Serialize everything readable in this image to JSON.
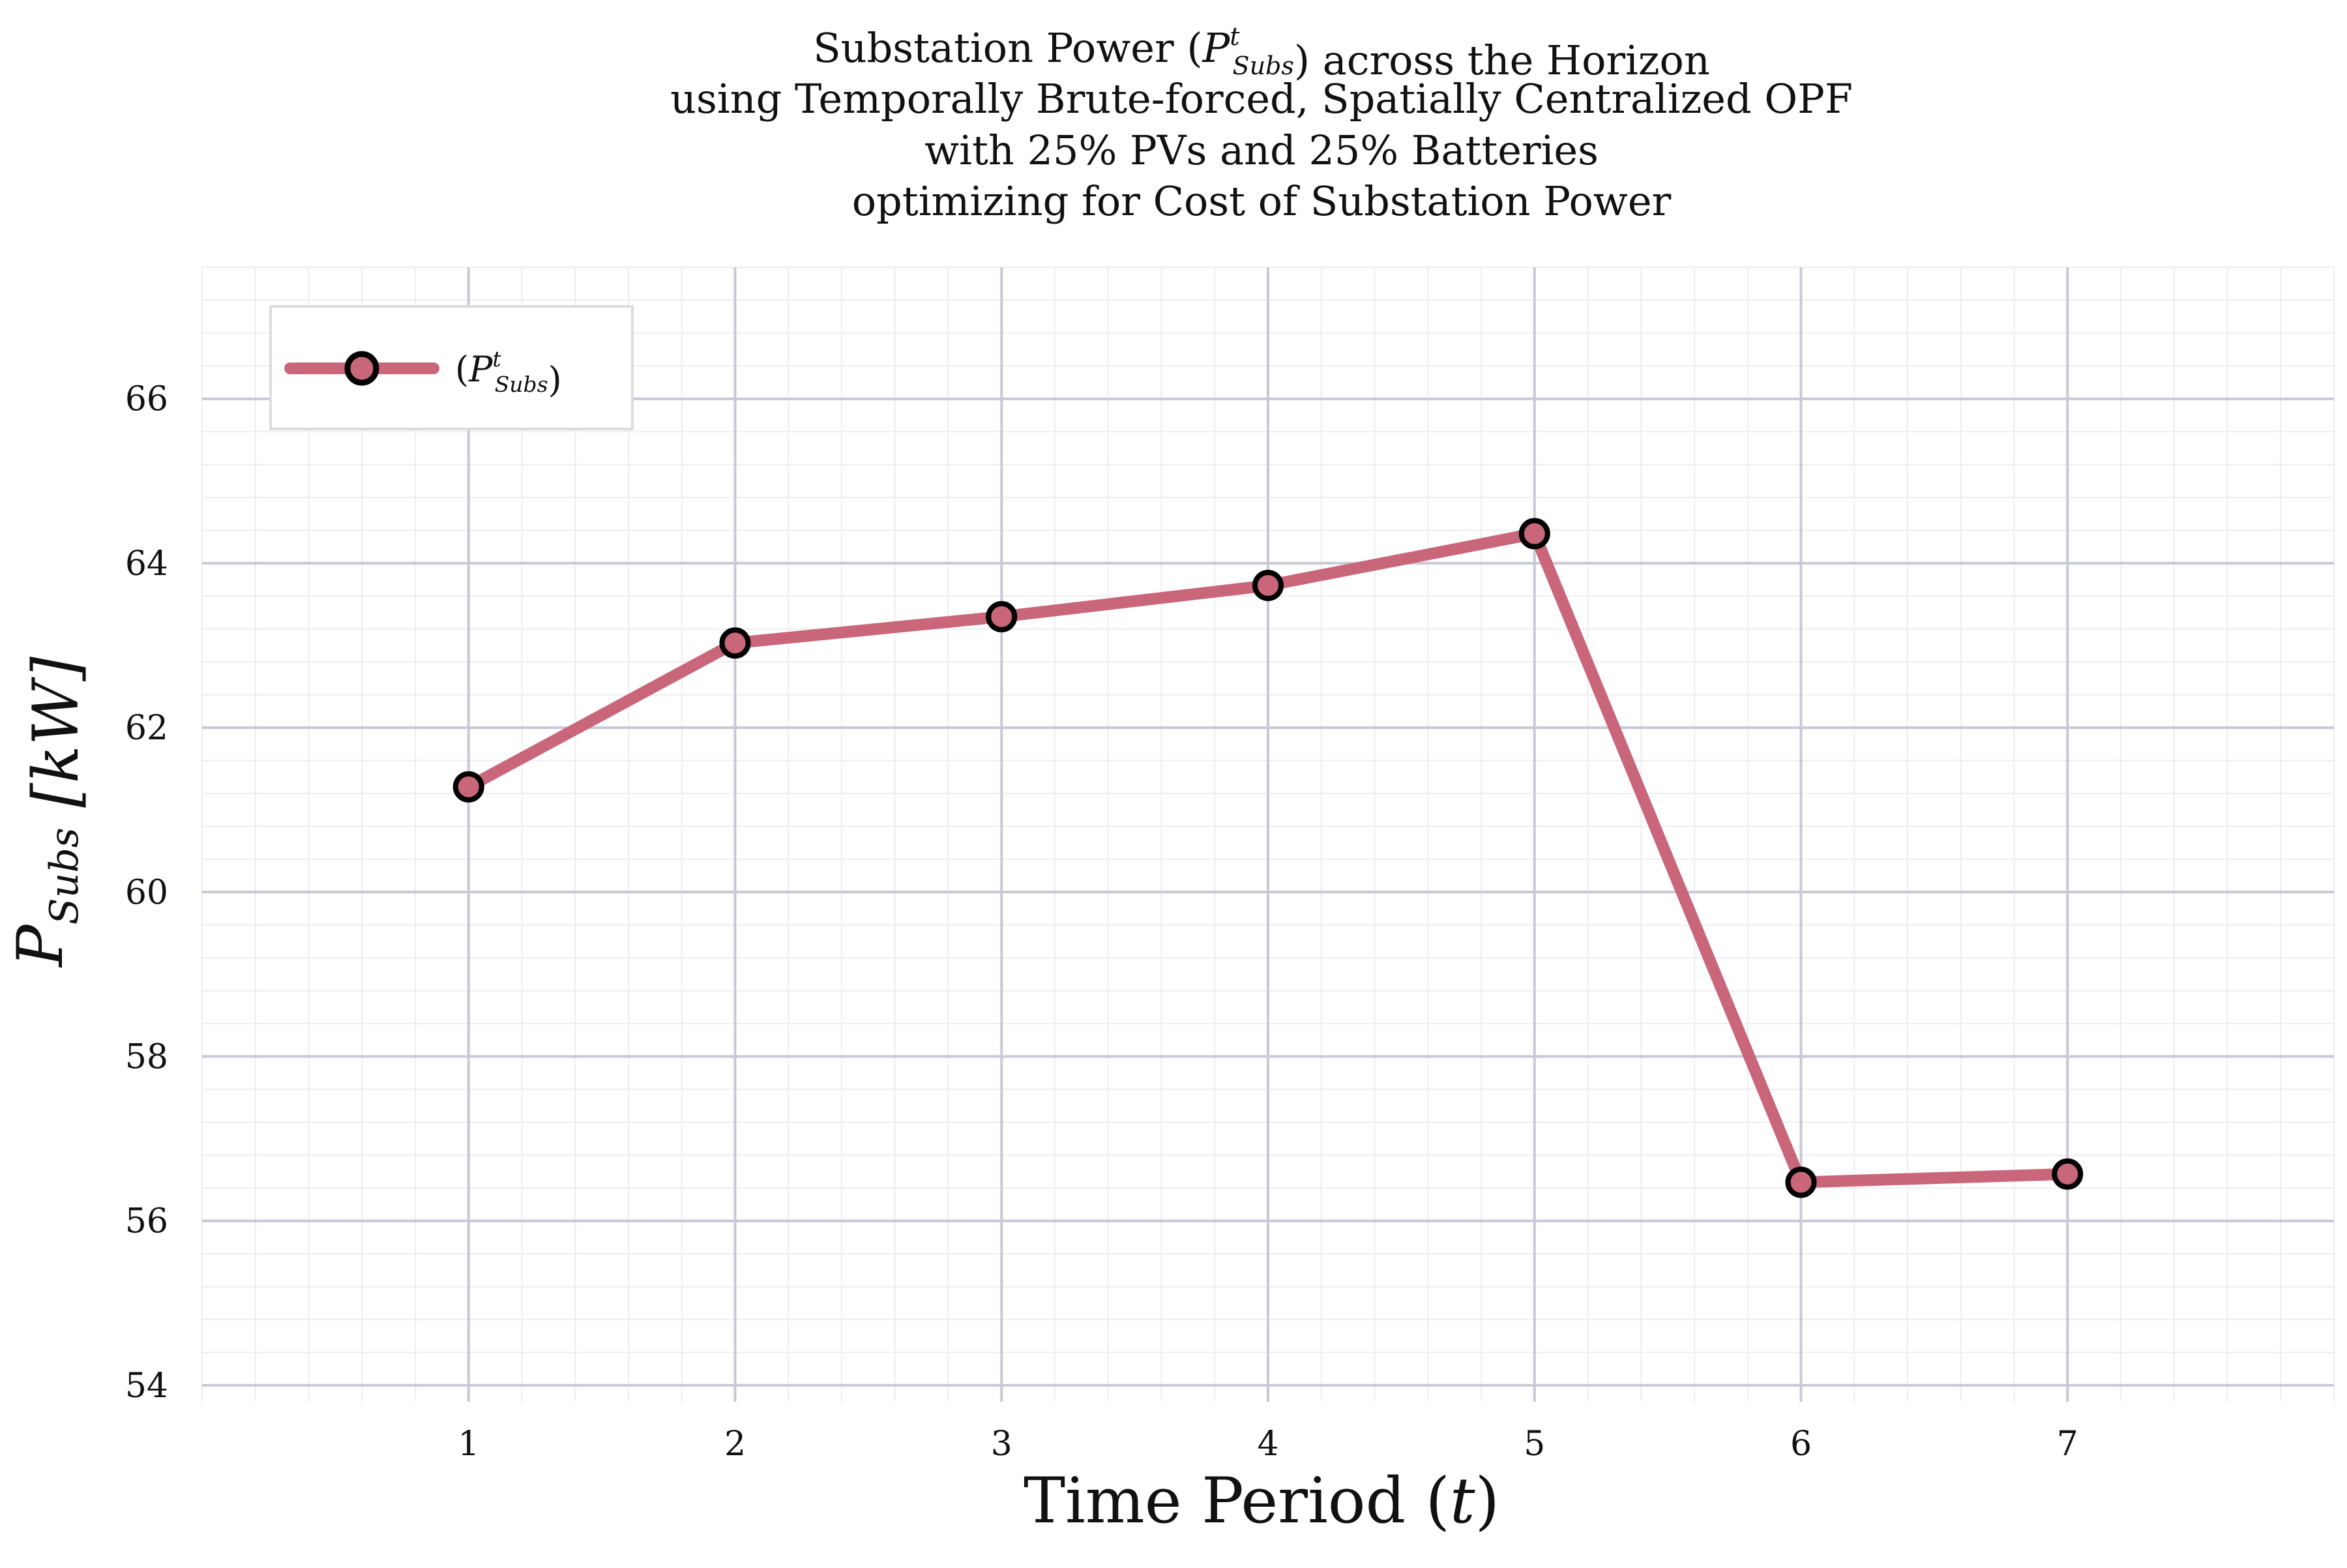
{
  "chart_data": {
    "type": "line",
    "title_lines": [
      "Substation Power (P^t_Subs) across the Horizon",
      "using Temporally Brute-forced, Spatially Centralized OPF",
      "with 25% PVs and 25% Batteries",
      "optimizing for Cost of Substation Power"
    ],
    "xlabel": "Time Period (t)",
    "ylabel": "P_Subs [kW]",
    "x": [
      1,
      2,
      3,
      4,
      5,
      6,
      7
    ],
    "xlim": [
      0,
      8
    ],
    "ylim": [
      53.8,
      67.6
    ],
    "xticks": [
      1,
      2,
      3,
      4,
      5,
      6,
      7
    ],
    "yticks": [
      54,
      56,
      58,
      60,
      62,
      64,
      66
    ],
    "grid": true,
    "legend_position": "top-left",
    "series": [
      {
        "name": "(P^t_Subs)",
        "values": [
          61.28,
          63.03,
          63.35,
          63.73,
          64.36,
          56.47,
          56.57
        ],
        "color": "#c9667a",
        "marker_edge_color": "#000000"
      }
    ]
  }
}
